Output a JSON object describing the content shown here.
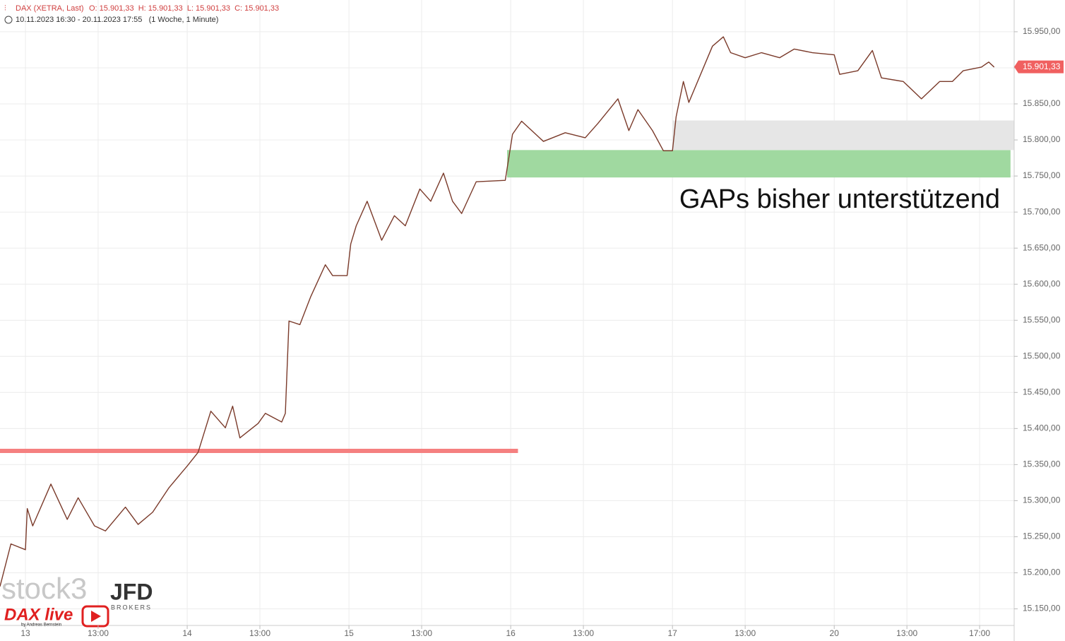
{
  "chart_data": {
    "type": "line",
    "header": {
      "ohlc": "O: 15.901,33  H: 15.901,33  L: 15.901,33  C: 15.901,33",
      "range": "10.11.2023 16:30 - 20.11.2023 17:55   (1 Woche, 1 Minute)"
    },
    "annotation": "GAPs bisher unterstützend",
    "logos": {
      "stock": "stock3",
      "broker": "JFD",
      "broker_sub": "BROKERS",
      "show": "DAX live",
      "author": "by Andreas Bernstein"
    },
    "x": [
      -1.4,
      -0.8,
      0,
      0.1,
      0.4,
      1.4,
      2.3,
      2.9,
      3.8,
      4.4,
      5.5,
      6.2,
      7.0,
      7.9,
      8.9,
      9.5,
      10.2,
      11.0,
      11.4,
      11.8,
      12.8,
      13.2,
      14.1,
      14.3,
      14.5,
      15.1,
      15.7,
      16.5,
      16.9,
      17.7,
      17.9,
      18.2,
      18.8,
      19.6,
      20.3,
      20.9,
      21.7,
      22.3,
      23.0,
      23.5,
      24.0,
      24.8,
      26.4,
      26.8,
      27.3,
      28.5,
      29.7,
      30.8,
      31.5,
      32.6,
      33.2,
      33.7,
      34.5,
      35.1,
      35.6,
      35.8,
      36.2,
      36.5,
      37.4,
      37.8,
      38.4,
      38.8,
      39.6,
      40.5,
      41.5,
      42.3,
      43.3,
      44.5,
      44.8,
      45.8,
      46.6,
      47.1,
      48.3,
      49.3,
      50.3,
      51.0,
      51.6,
      52.6,
      53.0,
      53.3
    ],
    "series": [
      {
        "name": "DAX (XETRA, Last)",
        "color": "#7a3a2a",
        "values": [
          15181,
          15240,
          15232,
          15289,
          15265,
          15323,
          15274,
          15304,
          15265,
          15258,
          15291,
          15267,
          15284,
          15318,
          15348,
          15367,
          15424,
          15401,
          15431,
          15387,
          15407,
          15421,
          15409,
          15421,
          15549,
          15544,
          15583,
          15627,
          15612,
          15612,
          15656,
          15681,
          15715,
          15661,
          15695,
          15681,
          15732,
          15715,
          15754,
          15715,
          15698,
          15742,
          15744,
          15808,
          15826,
          15798,
          15810,
          15803,
          15823,
          15857,
          15813,
          15842,
          15813,
          15785,
          15785,
          15832,
          15881,
          15852,
          15906,
          15930,
          15943,
          15921,
          15914,
          15921,
          15914,
          15926,
          15921,
          15918,
          15891,
          15896,
          15924,
          15886,
          15881,
          15857,
          15881,
          15881,
          15896,
          15901,
          15908,
          15901
        ]
      }
    ],
    "last_price": {
      "value": 15901.33,
      "label": "15.901,33",
      "color": "#f06060"
    },
    "levels": [
      {
        "value": 15369,
        "xlim": [
          -1.4,
          27.1
        ],
        "color": "#f58080"
      }
    ],
    "zones": [
      {
        "ylim": [
          15748,
          15786
        ],
        "xlim": [
          26.5,
          54.2
        ],
        "color": "#a0d9a0"
      },
      {
        "ylim": [
          15786,
          15827
        ],
        "xlim": [
          35.6,
          54.4
        ],
        "color": "#e6e6e6"
      }
    ],
    "xlim": [
      -1.4,
      54.4
    ],
    "ylim": [
      15127,
      15994
    ],
    "xticks": [
      {
        "value": 0,
        "label": "13"
      },
      {
        "value": 4,
        "label": "13:00"
      },
      {
        "value": 8.9,
        "label": "14"
      },
      {
        "value": 12.9,
        "label": "13:00"
      },
      {
        "value": 17.8,
        "label": "15"
      },
      {
        "value": 21.8,
        "label": "13:00"
      },
      {
        "value": 26.7,
        "label": "16"
      },
      {
        "value": 30.7,
        "label": "13:00"
      },
      {
        "value": 35.6,
        "label": "17"
      },
      {
        "value": 39.6,
        "label": "13:00"
      },
      {
        "value": 44.5,
        "label": "20"
      },
      {
        "value": 48.5,
        "label": "13:00"
      },
      {
        "value": 52.5,
        "label": "17:00"
      }
    ],
    "yticks": [
      {
        "value": 15150,
        "label": "15.150,00"
      },
      {
        "value": 15200,
        "label": "15.200,00"
      },
      {
        "value": 15250,
        "label": "15.250,00"
      },
      {
        "value": 15300,
        "label": "15.300,00"
      },
      {
        "value": 15350,
        "label": "15.350,00"
      },
      {
        "value": 15400,
        "label": "15.400,00"
      },
      {
        "value": 15450,
        "label": "15.450,00"
      },
      {
        "value": 15500,
        "label": "15.500,00"
      },
      {
        "value": 15550,
        "label": "15.550,00"
      },
      {
        "value": 15600,
        "label": "15.600,00"
      },
      {
        "value": 15650,
        "label": "15.650,00"
      },
      {
        "value": 15700,
        "label": "15.700,00"
      },
      {
        "value": 15750,
        "label": "15.750,00"
      },
      {
        "value": 15800,
        "label": "15.800,00"
      },
      {
        "value": 15850,
        "label": "15.850,00"
      },
      {
        "value": 15900,
        "label": "15.900,00"
      },
      {
        "value": 15950,
        "label": "15.950,00"
      }
    ],
    "grid": true
  }
}
